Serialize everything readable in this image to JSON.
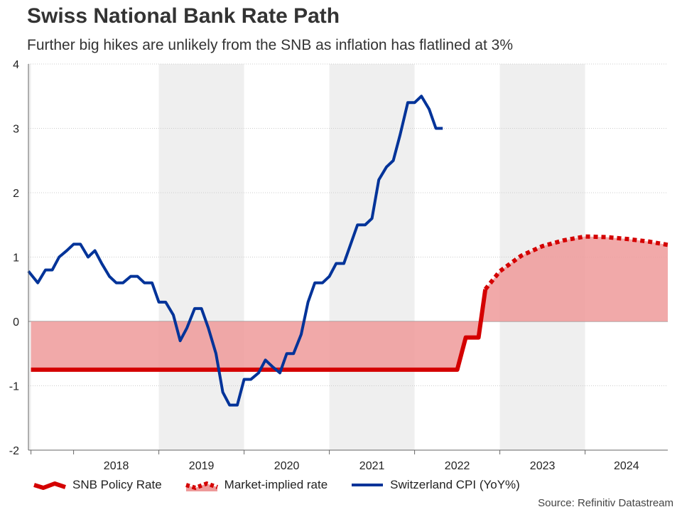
{
  "title": "Swiss National Bank Rate Path",
  "subtitle": "Further big hikes are unlikely from the SNB as inflation has flatlined at 3%",
  "source": "Source: Refinitiv Datastream",
  "colors": {
    "policy": "#d40000",
    "market": "#d40000",
    "area": "#ee9a9a",
    "cpi": "#003399",
    "band": "#efefef",
    "zero": "#888888"
  },
  "chart_data": {
    "type": "line",
    "title": "Swiss National Bank Rate Path",
    "xlabel": "",
    "ylabel": "",
    "ylim": [
      -2,
      4
    ],
    "yticks": [
      -2,
      -1,
      0,
      1,
      2,
      3,
      4
    ],
    "xlim": [
      2017.47,
      2024.97
    ],
    "x_categories": [
      "2018",
      "2019",
      "2020",
      "2021",
      "2022",
      "2023",
      "2024"
    ],
    "shaded_years": [
      "2019",
      "2021",
      "2023"
    ],
    "legend": [
      "SNB Policy Rate",
      "Market-implied rate",
      "Switzerland CPI (YoY%)"
    ],
    "series": [
      {
        "name": "SNB Policy Rate",
        "style": "solid",
        "points": [
          [
            2017.5,
            -0.75
          ],
          [
            2022.5,
            -0.75
          ],
          [
            2022.6,
            -0.25
          ],
          [
            2022.75,
            -0.25
          ],
          [
            2022.83,
            0.5
          ]
        ]
      },
      {
        "name": "Market-implied rate",
        "style": "dotted",
        "points": [
          [
            2022.83,
            0.5
          ],
          [
            2023.0,
            0.78
          ],
          [
            2023.25,
            1.02
          ],
          [
            2023.5,
            1.17
          ],
          [
            2023.75,
            1.26
          ],
          [
            2024.0,
            1.32
          ],
          [
            2024.25,
            1.31
          ],
          [
            2024.5,
            1.28
          ],
          [
            2024.75,
            1.24
          ],
          [
            2024.97,
            1.19
          ]
        ]
      },
      {
        "name": "Switzerland CPI (YoY%)",
        "style": "solid",
        "points": [
          [
            2017.47,
            0.78
          ],
          [
            2017.58,
            0.6
          ],
          [
            2017.67,
            0.8
          ],
          [
            2017.75,
            0.8
          ],
          [
            2017.83,
            1.0
          ],
          [
            2017.92,
            1.1
          ],
          [
            2018.0,
            1.2
          ],
          [
            2018.08,
            1.2
          ],
          [
            2018.17,
            1.0
          ],
          [
            2018.25,
            1.1
          ],
          [
            2018.33,
            0.9
          ],
          [
            2018.42,
            0.7
          ],
          [
            2018.5,
            0.6
          ],
          [
            2018.58,
            0.6
          ],
          [
            2018.67,
            0.7
          ],
          [
            2018.75,
            0.7
          ],
          [
            2018.83,
            0.6
          ],
          [
            2018.92,
            0.6
          ],
          [
            2019.0,
            0.3
          ],
          [
            2019.08,
            0.3
          ],
          [
            2019.17,
            0.1
          ],
          [
            2019.25,
            -0.3
          ],
          [
            2019.33,
            -0.1
          ],
          [
            2019.42,
            0.2
          ],
          [
            2019.5,
            0.2
          ],
          [
            2019.58,
            -0.1
          ],
          [
            2019.67,
            -0.5
          ],
          [
            2019.75,
            -1.1
          ],
          [
            2019.83,
            -1.3
          ],
          [
            2019.92,
            -1.3
          ],
          [
            2020.0,
            -0.9
          ],
          [
            2020.08,
            -0.9
          ],
          [
            2020.17,
            -0.8
          ],
          [
            2020.25,
            -0.6
          ],
          [
            2020.33,
            -0.7
          ],
          [
            2020.42,
            -0.8
          ],
          [
            2020.5,
            -0.5
          ],
          [
            2020.58,
            -0.5
          ],
          [
            2020.67,
            -0.2
          ],
          [
            2020.75,
            0.3
          ],
          [
            2020.83,
            0.6
          ],
          [
            2020.92,
            0.6
          ],
          [
            2021.0,
            0.7
          ],
          [
            2021.08,
            0.9
          ],
          [
            2021.17,
            0.9
          ],
          [
            2021.25,
            1.2
          ],
          [
            2021.33,
            1.5
          ],
          [
            2021.42,
            1.5
          ],
          [
            2021.5,
            1.6
          ],
          [
            2021.58,
            2.2
          ],
          [
            2021.67,
            2.4
          ],
          [
            2021.75,
            2.5
          ],
          [
            2021.83,
            2.9
          ],
          [
            2021.92,
            3.4
          ],
          [
            2022.0,
            3.4
          ],
          [
            2022.08,
            3.5
          ],
          [
            2022.17,
            3.3
          ],
          [
            2022.25,
            3.0
          ],
          [
            2022.33,
            3.0
          ]
        ]
      }
    ]
  }
}
